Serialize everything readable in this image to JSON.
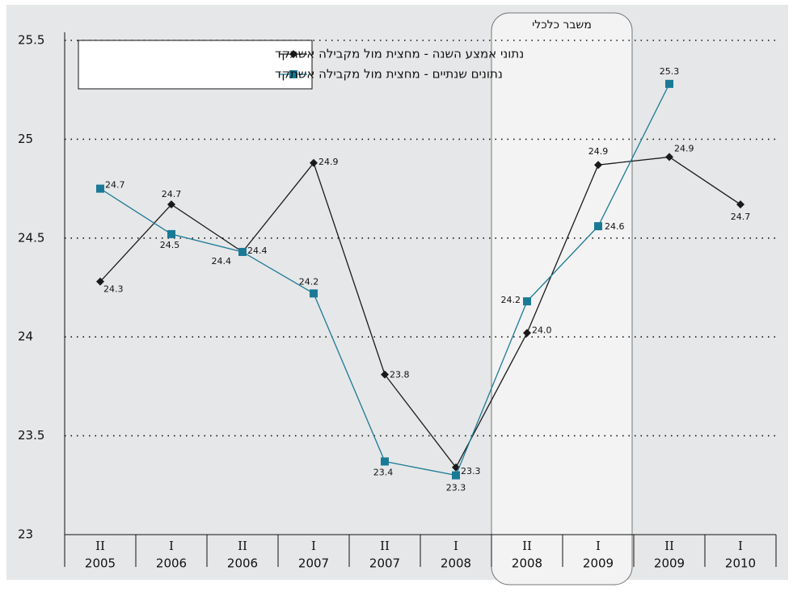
{
  "chart_data": {
    "type": "line",
    "annotation": "משבר כלכלי",
    "categories": [
      [
        "II",
        "2005"
      ],
      [
        "I",
        "2006"
      ],
      [
        "II",
        "2006"
      ],
      [
        "I",
        "2007"
      ],
      [
        "II",
        "2007"
      ],
      [
        "I",
        "2008"
      ],
      [
        "II",
        "2008"
      ],
      [
        "I",
        "2009"
      ],
      [
        "II",
        "2009"
      ],
      [
        "I",
        "2010"
      ]
    ],
    "series": [
      {
        "name": "נתוני אמצע השנה - מחצית מול מקבילה אשתקד",
        "color": "#1a1a1a",
        "marker": "diamond",
        "values": [
          24.28,
          24.67,
          24.43,
          24.88,
          23.81,
          23.34,
          24.02,
          24.87,
          24.91,
          24.67
        ],
        "value_labels": [
          "24.3",
          "24.7",
          "24.4",
          "24.9",
          "23.8",
          "23.3",
          "24.0",
          "24.9",
          "24.9",
          "24.7"
        ]
      },
      {
        "name": "נתונים שנתיים - מחצית מול מקבילה אשתקד",
        "color": "#1a7a96",
        "marker": "square",
        "values": [
          24.75,
          24.52,
          24.43,
          24.22,
          23.37,
          23.3,
          24.18,
          24.56,
          25.28,
          null
        ],
        "value_labels": [
          "24.7",
          "24.5",
          "24.4",
          "24.2",
          "23.4",
          "23.3",
          "24.2",
          "24.6",
          "25.3",
          null
        ]
      }
    ],
    "ylim": [
      23,
      25.5
    ],
    "yticks": [
      23,
      23.5,
      24,
      24.5,
      25,
      25.5
    ],
    "grid": true
  }
}
